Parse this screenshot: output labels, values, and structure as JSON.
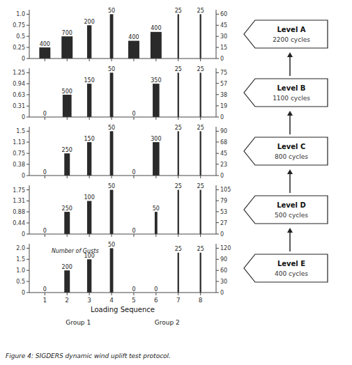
{
  "chart_data": [
    {
      "type": "bar",
      "title": "Level A",
      "subtitle": "2200 cycles",
      "categories": [
        "1",
        "2",
        "3",
        "4",
        "5",
        "6",
        "7",
        "8"
      ],
      "values": [
        0.25,
        0.5,
        0.75,
        1.0,
        0.4,
        0.6,
        1.0,
        1.0
      ],
      "gust_counts": [
        400,
        700,
        200,
        50,
        400,
        400,
        25,
        25
      ],
      "bar_widths": [
        0.5,
        0.5,
        0.2,
        0.15,
        0.5,
        0.5,
        0.07,
        0.07
      ],
      "color": "#2a2a2a",
      "ylim": [
        0,
        1.1
      ],
      "yticks": [
        0,
        0.25,
        0.5,
        0.75,
        {
          "value": 1,
          "label": "1.0"
        }
      ],
      "y2lim": [
        0,
        66
      ],
      "y2ticks": [
        0,
        15,
        30,
        45,
        60
      ],
      "tick_labels": "y"
    },
    {
      "type": "bar",
      "title": "Level B",
      "subtitle": "1100 cycles",
      "categories": [
        "1",
        "2",
        "3",
        "4",
        "5",
        "6",
        "7",
        "8"
      ],
      "values": [
        0,
        0.63,
        0.94,
        1.25,
        0,
        0.94,
        1.25,
        1.25
      ],
      "gust_counts": [
        0,
        500,
        150,
        50,
        0,
        350,
        25,
        25
      ],
      "bar_widths": [
        0.05,
        0.4,
        0.2,
        0.15,
        0.05,
        0.3,
        0.07,
        0.07
      ],
      "color": "#2a2a2a",
      "ylim": [
        0,
        1.375
      ],
      "yticks": [
        0,
        0.31,
        0.63,
        0.94,
        1.25
      ],
      "y2lim": [
        0,
        82.5
      ],
      "y2ticks": [
        0,
        19,
        38,
        57,
        75
      ],
      "tick_labels": "y"
    },
    {
      "type": "bar",
      "title": "Level C",
      "subtitle": "800 cycles",
      "categories": [
        "1",
        "2",
        "3",
        "4",
        "5",
        "6",
        "7",
        "8"
      ],
      "values": [
        0,
        0.75,
        1.13,
        1.5,
        0,
        1.13,
        1.5,
        1.5
      ],
      "gust_counts": [
        0,
        250,
        150,
        50,
        0,
        300,
        25,
        25
      ],
      "bar_widths": [
        0.05,
        0.25,
        0.2,
        0.15,
        0.05,
        0.3,
        0.07,
        0.07
      ],
      "color": "#2a2a2a",
      "ylim": [
        0,
        1.65
      ],
      "yticks": [
        0,
        0.38,
        0.75,
        1.13,
        1.5
      ],
      "y2lim": [
        0,
        99
      ],
      "y2ticks": [
        0,
        23,
        45,
        68,
        90
      ],
      "tick_labels": "y"
    },
    {
      "type": "bar",
      "title": "Level D",
      "subtitle": "500 cycles",
      "categories": [
        "1",
        "2",
        "3",
        "4",
        "5",
        "6",
        "7",
        "8"
      ],
      "values": [
        0,
        0.88,
        1.31,
        1.75,
        0,
        0.88,
        1.75,
        1.75
      ],
      "gust_counts": [
        0,
        250,
        100,
        50,
        0,
        50,
        25,
        25
      ],
      "bar_widths": [
        0.05,
        0.25,
        0.2,
        0.15,
        0.05,
        0.12,
        0.07,
        0.07
      ],
      "color": "#2a2a2a",
      "ylim": [
        0,
        1.93
      ],
      "yticks": [
        0,
        0.44,
        0.88,
        1.31,
        1.75
      ],
      "y2lim": [
        0,
        115.5
      ],
      "y2ticks": [
        0,
        27,
        53,
        79,
        105
      ],
      "tick_labels": "y"
    },
    {
      "type": "bar",
      "title": "Level E",
      "subtitle": "400 cycles",
      "categories": [
        "1",
        "2",
        "3",
        "4",
        "5",
        "6",
        "7",
        "8"
      ],
      "values": [
        0,
        1.0,
        1.5,
        2.0,
        0,
        0,
        1.8,
        1.8
      ],
      "gust_counts": [
        0,
        200,
        100,
        50,
        0,
        0,
        25,
        25
      ],
      "bar_widths": [
        0.05,
        0.25,
        0.2,
        0.15,
        0.05,
        0.05,
        0.07,
        0.07
      ],
      "color": "#2a2a2a",
      "ylim": [
        0,
        2.2
      ],
      "yticks": [
        0,
        0.5,
        {
          "value": 1,
          "label": "1.0"
        },
        1.5,
        {
          "value": 2,
          "label": "2.0"
        }
      ],
      "y2lim": [
        0,
        132
      ],
      "y2ticks": [
        0,
        30,
        60,
        90,
        120
      ],
      "xlabel": "Loading Sequence",
      "annotations": [
        "Number of Gusts"
      ],
      "group_labels": [
        "Group 1",
        "Group 2"
      ],
      "caption": "Figure 4: SIGDERS dynamic wind uplift test protocol."
    }
  ]
}
